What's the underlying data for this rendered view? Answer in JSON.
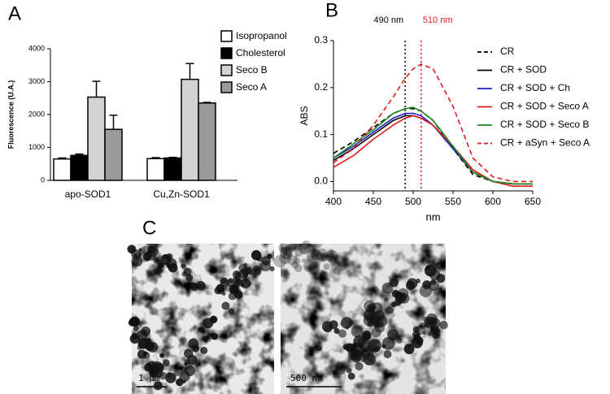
{
  "chart_data": [
    {
      "type": "bar",
      "panel": "A",
      "ylabel": "Fluorescence (U.A.)",
      "categories": [
        "apo-SOD1",
        "Cu,Zn-SOD1"
      ],
      "series": [
        {
          "name": "Isopropanol",
          "color": "#ffffff",
          "values": [
            650,
            660
          ],
          "errors": [
            30,
            30
          ]
        },
        {
          "name": "Cholesterol",
          "color": "#000000",
          "values": [
            760,
            680
          ],
          "errors": [
            40,
            20
          ]
        },
        {
          "name": "Seco B",
          "color": "#d3d3d3",
          "values": [
            2530,
            3070
          ],
          "errors": [
            480,
            480
          ]
        },
        {
          "name": "Seco A",
          "color": "#9a9a9a",
          "values": [
            1550,
            2350
          ],
          "errors": [
            430,
            20
          ]
        }
      ],
      "ylim": [
        0,
        4000
      ],
      "yticks": [
        0,
        1000,
        2000,
        3000,
        4000
      ]
    },
    {
      "type": "line",
      "panel": "B",
      "xlabel": "nm",
      "ylabel": "ABS",
      "x": [
        400,
        425,
        450,
        475,
        490,
        500,
        510,
        525,
        550,
        575,
        600,
        625,
        650
      ],
      "series": [
        {
          "name": "CR",
          "color": "#000000",
          "style": "dashed",
          "values": [
            0.06,
            0.085,
            0.115,
            0.145,
            0.155,
            0.155,
            0.15,
            0.13,
            0.07,
            0.015,
            0.0,
            -0.005,
            -0.005
          ]
        },
        {
          "name": "CR + SOD",
          "color": "#000000",
          "style": "solid",
          "values": [
            0.045,
            0.07,
            0.1,
            0.13,
            0.14,
            0.14,
            0.135,
            0.12,
            0.07,
            0.02,
            0.0,
            -0.005,
            -0.005
          ]
        },
        {
          "name": "CR + SOD + Ch",
          "color": "#1f1fbf",
          "style": "solid",
          "values": [
            0.05,
            0.075,
            0.105,
            0.135,
            0.145,
            0.145,
            0.14,
            0.12,
            0.07,
            0.02,
            0.0,
            -0.005,
            -0.005
          ]
        },
        {
          "name": "CR + SOD + Seco A",
          "color": "#e31a1c",
          "style": "solid",
          "values": [
            0.03,
            0.055,
            0.09,
            0.12,
            0.135,
            0.14,
            0.135,
            0.12,
            0.075,
            0.025,
            0.0,
            -0.01,
            -0.01
          ]
        },
        {
          "name": "CR + SOD + Seco B",
          "color": "#1a8a1a",
          "style": "solid",
          "values": [
            0.05,
            0.08,
            0.11,
            0.145,
            0.155,
            0.158,
            0.15,
            0.13,
            0.075,
            0.02,
            0.0,
            -0.005,
            -0.005
          ]
        },
        {
          "name": "CR + aSyn + Seco A",
          "color": "#e31a1c",
          "style": "dashed",
          "values": [
            0.04,
            0.07,
            0.12,
            0.18,
            0.22,
            0.24,
            0.25,
            0.24,
            0.16,
            0.05,
            0.01,
            0.0,
            0.0
          ]
        }
      ],
      "annotations": [
        {
          "x": 490,
          "text": "490 nm",
          "color": "#000000"
        },
        {
          "x": 510,
          "text": "510 nm",
          "color": "#e31a1c"
        }
      ],
      "xlim": [
        400,
        650
      ],
      "xticks": [
        400,
        450,
        500,
        550,
        600,
        650
      ],
      "ylim": [
        -0.02,
        0.3
      ],
      "yticks": [
        {
          "value": 0,
          "label": "0.0"
        },
        0.1,
        0.2,
        0.3
      ]
    }
  ],
  "micrographs": {
    "panel": "C",
    "images": [
      {
        "scale_label": "1 µm"
      },
      {
        "scale_label": "500 nm"
      }
    ]
  }
}
